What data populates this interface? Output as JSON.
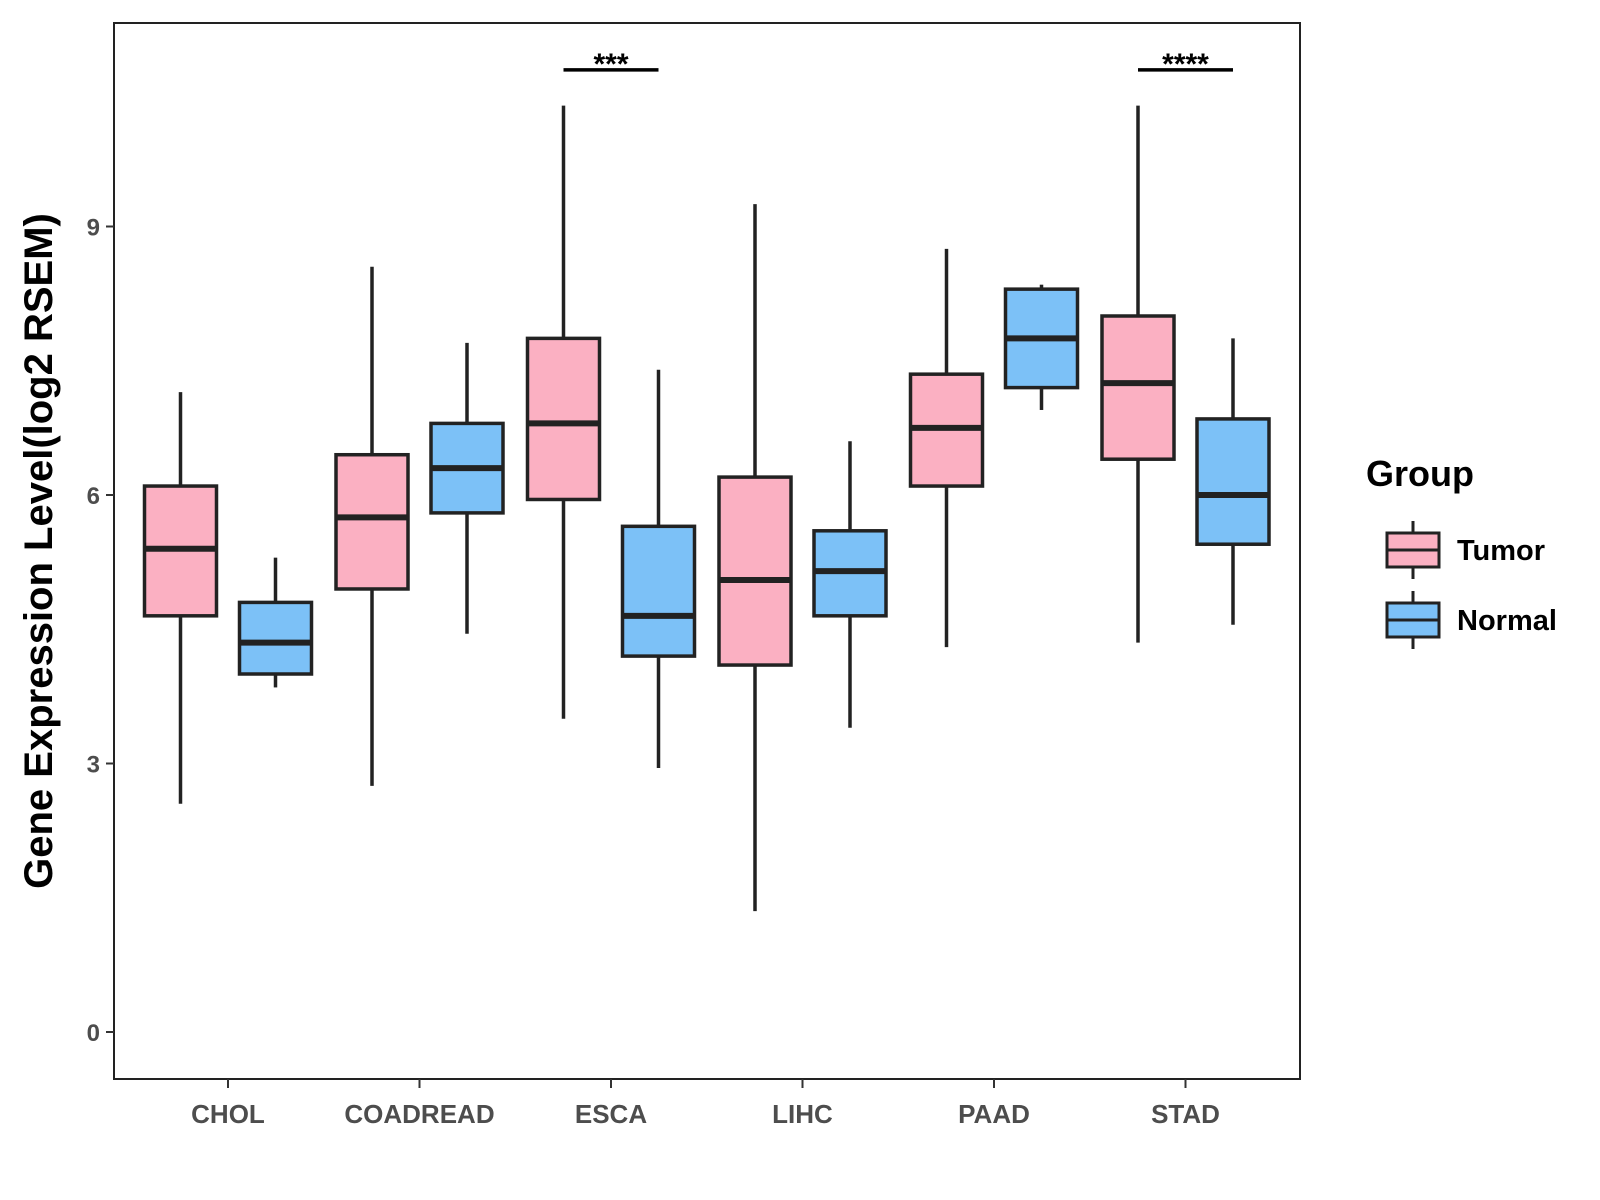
{
  "chart_data": {
    "type": "boxplot",
    "title": "",
    "xlabel": "",
    "ylabel": "Gene Expression Level(log2 RSEM)",
    "ylim": [
      -0.5,
      11.3
    ],
    "yticks": [
      0,
      3,
      6,
      9
    ],
    "categories": [
      "CHOL",
      "COADREAD",
      "ESCA",
      "LIHC",
      "PAAD",
      "STAD"
    ],
    "legend": {
      "title": "Group",
      "position": "right"
    },
    "series": [
      {
        "name": "Tumor",
        "color": "#FBB0C2",
        "boxes": [
          {
            "min": 2.55,
            "q1": 4.65,
            "median": 5.4,
            "q3": 6.1,
            "max": 7.15
          },
          {
            "min": 2.75,
            "q1": 4.95,
            "median": 5.75,
            "q3": 6.45,
            "max": 8.55
          },
          {
            "min": 3.5,
            "q1": 5.95,
            "median": 6.8,
            "q3": 7.75,
            "max": 10.35
          },
          {
            "min": 1.35,
            "q1": 4.1,
            "median": 5.05,
            "q3": 6.2,
            "max": 9.25
          },
          {
            "min": 4.3,
            "q1": 6.1,
            "median": 6.75,
            "q3": 7.35,
            "max": 8.75
          },
          {
            "min": 4.35,
            "q1": 6.4,
            "median": 7.25,
            "q3": 8.0,
            "max": 10.35
          }
        ]
      },
      {
        "name": "Normal",
        "color": "#7CC1F7",
        "boxes": [
          {
            "min": 3.85,
            "q1": 4.0,
            "median": 4.35,
            "q3": 4.8,
            "max": 5.3
          },
          {
            "min": 4.45,
            "q1": 5.8,
            "median": 6.3,
            "q3": 6.8,
            "max": 7.7
          },
          {
            "min": 2.95,
            "q1": 4.2,
            "median": 4.65,
            "q3": 5.65,
            "max": 7.4
          },
          {
            "min": 3.4,
            "q1": 4.65,
            "median": 5.15,
            "q3": 5.6,
            "max": 6.6
          },
          {
            "min": 6.95,
            "q1": 7.2,
            "median": 7.75,
            "q3": 8.3,
            "max": 8.35
          },
          {
            "min": 4.55,
            "q1": 5.45,
            "median": 6.0,
            "q3": 6.85,
            "max": 7.75
          }
        ]
      }
    ],
    "annotations": [
      {
        "category": "ESCA",
        "label": "***",
        "y": 10.75
      },
      {
        "category": "STAD",
        "label": "****",
        "y": 10.75
      }
    ]
  }
}
